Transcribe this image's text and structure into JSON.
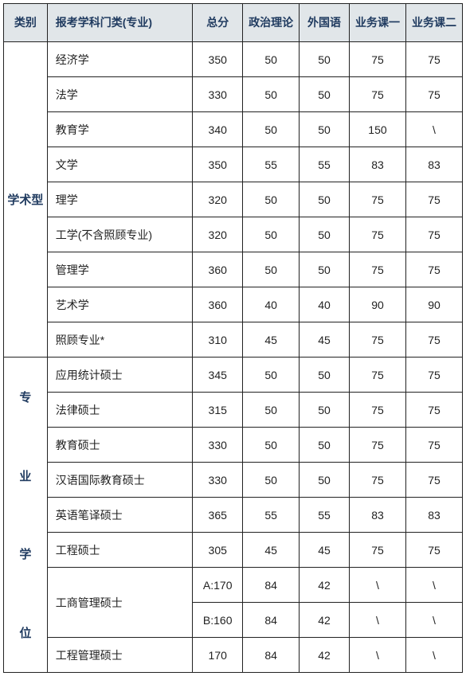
{
  "table": {
    "header": {
      "category": "类别",
      "major": "报考学科门类(专业)",
      "total": "总分",
      "sub1": "政治理论",
      "sub2": "外国语",
      "sub3": "业务课一",
      "sub4": "业务课二"
    },
    "groups": [
      {
        "category": "学术型",
        "rows": [
          {
            "major": "经济学",
            "total": "350",
            "s1": "50",
            "s2": "50",
            "s3": "75",
            "s4": "75"
          },
          {
            "major": "法学",
            "total": "330",
            "s1": "50",
            "s2": "50",
            "s3": "75",
            "s4": "75"
          },
          {
            "major": "教育学",
            "total": "340",
            "s1": "50",
            "s2": "50",
            "s3": "150",
            "s4": "\\"
          },
          {
            "major": "文学",
            "total": "350",
            "s1": "55",
            "s2": "55",
            "s3": "83",
            "s4": "83"
          },
          {
            "major": "理学",
            "total": "320",
            "s1": "50",
            "s2": "50",
            "s3": "75",
            "s4": "75"
          },
          {
            "major": "工学(不含照顾专业)",
            "total": "320",
            "s1": "50",
            "s2": "50",
            "s3": "75",
            "s4": "75"
          },
          {
            "major": "管理学",
            "total": "360",
            "s1": "50",
            "s2": "50",
            "s3": "75",
            "s4": "75"
          },
          {
            "major": "艺术学",
            "total": "360",
            "s1": "40",
            "s2": "40",
            "s3": "90",
            "s4": "90"
          },
          {
            "major": "照顾专业*",
            "total": "310",
            "s1": "45",
            "s2": "45",
            "s3": "75",
            "s4": "75"
          }
        ]
      },
      {
        "category": "专业学位",
        "category_chars": [
          "专",
          "业",
          "学",
          "位"
        ],
        "rows": [
          {
            "major": "应用统计硕士",
            "total": "345",
            "s1": "50",
            "s2": "50",
            "s3": "75",
            "s4": "75"
          },
          {
            "major": "法律硕士",
            "total": "315",
            "s1": "50",
            "s2": "50",
            "s3": "75",
            "s4": "75"
          },
          {
            "major": "教育硕士",
            "total": "330",
            "s1": "50",
            "s2": "50",
            "s3": "75",
            "s4": "75"
          },
          {
            "major": "汉语国际教育硕士",
            "total": "330",
            "s1": "50",
            "s2": "50",
            "s3": "75",
            "s4": "75"
          },
          {
            "major": "英语笔译硕士",
            "total": "365",
            "s1": "55",
            "s2": "55",
            "s3": "83",
            "s4": "83"
          },
          {
            "major": "工程硕士",
            "total": "305",
            "s1": "45",
            "s2": "45",
            "s3": "75",
            "s4": "75"
          },
          {
            "major": "工商管理硕士",
            "major_rowspan": 2,
            "total": "A:170",
            "s1": "84",
            "s2": "42",
            "s3": "\\",
            "s4": "\\"
          },
          {
            "skip_major": true,
            "total": "B:160",
            "s1": "84",
            "s2": "42",
            "s3": "\\",
            "s4": "\\"
          },
          {
            "major": "工程管理硕士",
            "total": "170",
            "s1": "84",
            "s2": "42",
            "s3": "\\",
            "s4": "\\"
          }
        ]
      }
    ],
    "style": {
      "header_bg": "#e1e6e9",
      "header_color": "#1f3a5f",
      "border_color": "#222222",
      "cell_bg": "#ffffff",
      "font_size_header": 14,
      "font_size_cell": 14
    }
  }
}
